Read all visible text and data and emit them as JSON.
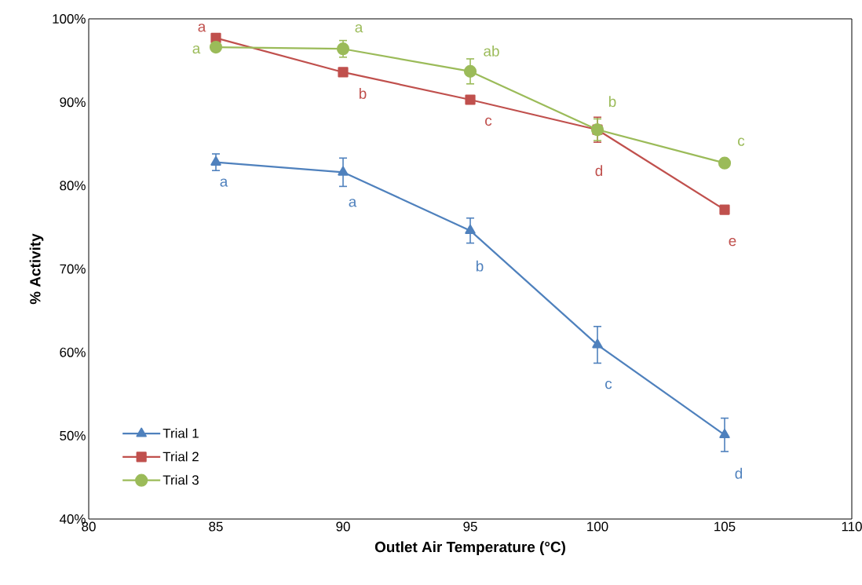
{
  "chart_data": {
    "type": "line",
    "xlabel": "Outlet Air Temperature   (°C)",
    "ylabel": "% Activity",
    "x": [
      85,
      90,
      95,
      100,
      105
    ],
    "series": [
      {
        "name": "Trial 1",
        "color": "#4f81bd",
        "marker": "triangle",
        "values": [
          82.8,
          81.6,
          74.6,
          60.9,
          50.1
        ],
        "errors": [
          1.0,
          1.7,
          1.5,
          2.2,
          2.0
        ],
        "value_labels": [
          "a",
          "a",
          "b",
          "c",
          "d"
        ]
      },
      {
        "name": "Trial 2",
        "color": "#c0504d",
        "marker": "square",
        "values": [
          97.7,
          93.6,
          90.3,
          86.7,
          77.1
        ],
        "errors": [
          null,
          null,
          null,
          1.5,
          null
        ],
        "value_labels": [
          "a",
          "b",
          "c",
          "d",
          "e"
        ]
      },
      {
        "name": "Trial 3",
        "color": "#9bbb59",
        "marker": "circle",
        "values": [
          96.6,
          96.4,
          93.7,
          86.7,
          82.7
        ],
        "errors": [
          0.5,
          1.0,
          1.5,
          1.3,
          0.5
        ],
        "value_labels": [
          "a",
          "a",
          "ab",
          "b",
          "c"
        ]
      }
    ],
    "xlim": [
      80,
      110
    ],
    "xticks": [
      80,
      85,
      90,
      95,
      100,
      105,
      110
    ],
    "ylim": [
      40,
      100
    ],
    "yticks": [
      {
        "value": 40,
        "label": "40%"
      },
      {
        "value": 50,
        "label": "50%"
      },
      {
        "value": 60,
        "label": "60%"
      },
      {
        "value": 70,
        "label": "70%"
      },
      {
        "value": 80,
        "label": "80%"
      },
      {
        "value": 90,
        "label": "90%"
      },
      {
        "value": 100,
        "label": "100%"
      }
    ],
    "legend": "bottom left",
    "grid": false
  }
}
